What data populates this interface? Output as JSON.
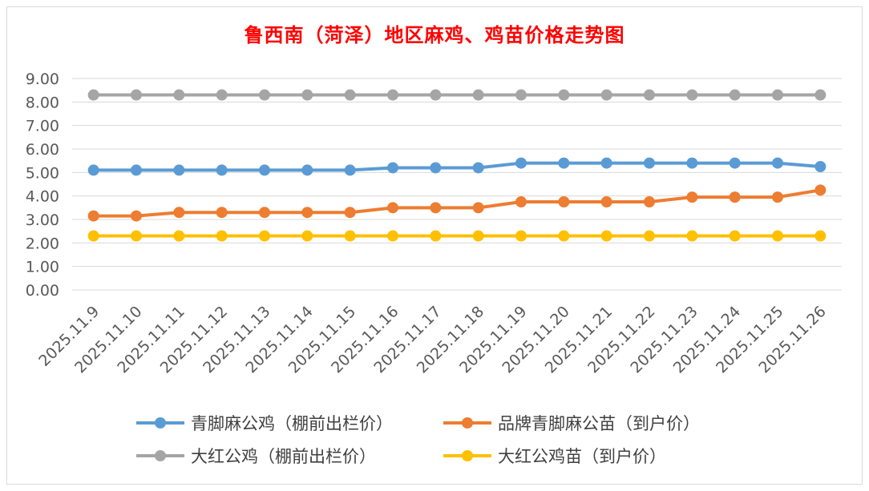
{
  "chart_data": {
    "type": "line",
    "title": "鲁西南（菏泽）地区麻鸡、鸡苗价格走势图",
    "title_color": "#FF0000",
    "xlabel": "",
    "ylabel": "",
    "ylim": [
      0,
      9
    ],
    "yticks": [
      "0.00",
      "1.00",
      "2.00",
      "3.00",
      "4.00",
      "5.00",
      "6.00",
      "7.00",
      "8.00",
      "9.00"
    ],
    "grid": true,
    "legend_position": "bottom",
    "categories": [
      "2025.11.9",
      "2025.11.10",
      "2025.11.11",
      "2025.11.12",
      "2025.11.13",
      "2025.11.14",
      "2025.11.15",
      "2025.11.16",
      "2025.11.17",
      "2025.11.18",
      "2025.11.19",
      "2025.11.20",
      "2025.11.21",
      "2025.11.22",
      "2025.11.23",
      "2025.11.24",
      "2025.11.25",
      "2025.11.26"
    ],
    "series": [
      {
        "name": "青脚麻公鸡（棚前出栏价）",
        "color": "#5B9BD5",
        "values": [
          5.1,
          5.1,
          5.1,
          5.1,
          5.1,
          5.1,
          5.1,
          5.2,
          5.2,
          5.2,
          5.4,
          5.4,
          5.4,
          5.4,
          5.4,
          5.4,
          5.4,
          5.25
        ]
      },
      {
        "name": "品牌青脚麻公苗（到户价）",
        "color": "#ED7D31",
        "values": [
          3.15,
          3.15,
          3.3,
          3.3,
          3.3,
          3.3,
          3.3,
          3.5,
          3.5,
          3.5,
          3.75,
          3.75,
          3.75,
          3.75,
          3.95,
          3.95,
          3.95,
          4.25
        ]
      },
      {
        "name": "大红公鸡（棚前出栏价）",
        "color": "#A5A5A5",
        "values": [
          8.3,
          8.3,
          8.3,
          8.3,
          8.3,
          8.3,
          8.3,
          8.3,
          8.3,
          8.3,
          8.3,
          8.3,
          8.3,
          8.3,
          8.3,
          8.3,
          8.3,
          8.3
        ]
      },
      {
        "name": "大红公鸡苗（到户价）",
        "color": "#FFC000",
        "values": [
          2.3,
          2.3,
          2.3,
          2.3,
          2.3,
          2.3,
          2.3,
          2.3,
          2.3,
          2.3,
          2.3,
          2.3,
          2.3,
          2.3,
          2.3,
          2.3,
          2.3,
          2.3
        ]
      }
    ]
  }
}
